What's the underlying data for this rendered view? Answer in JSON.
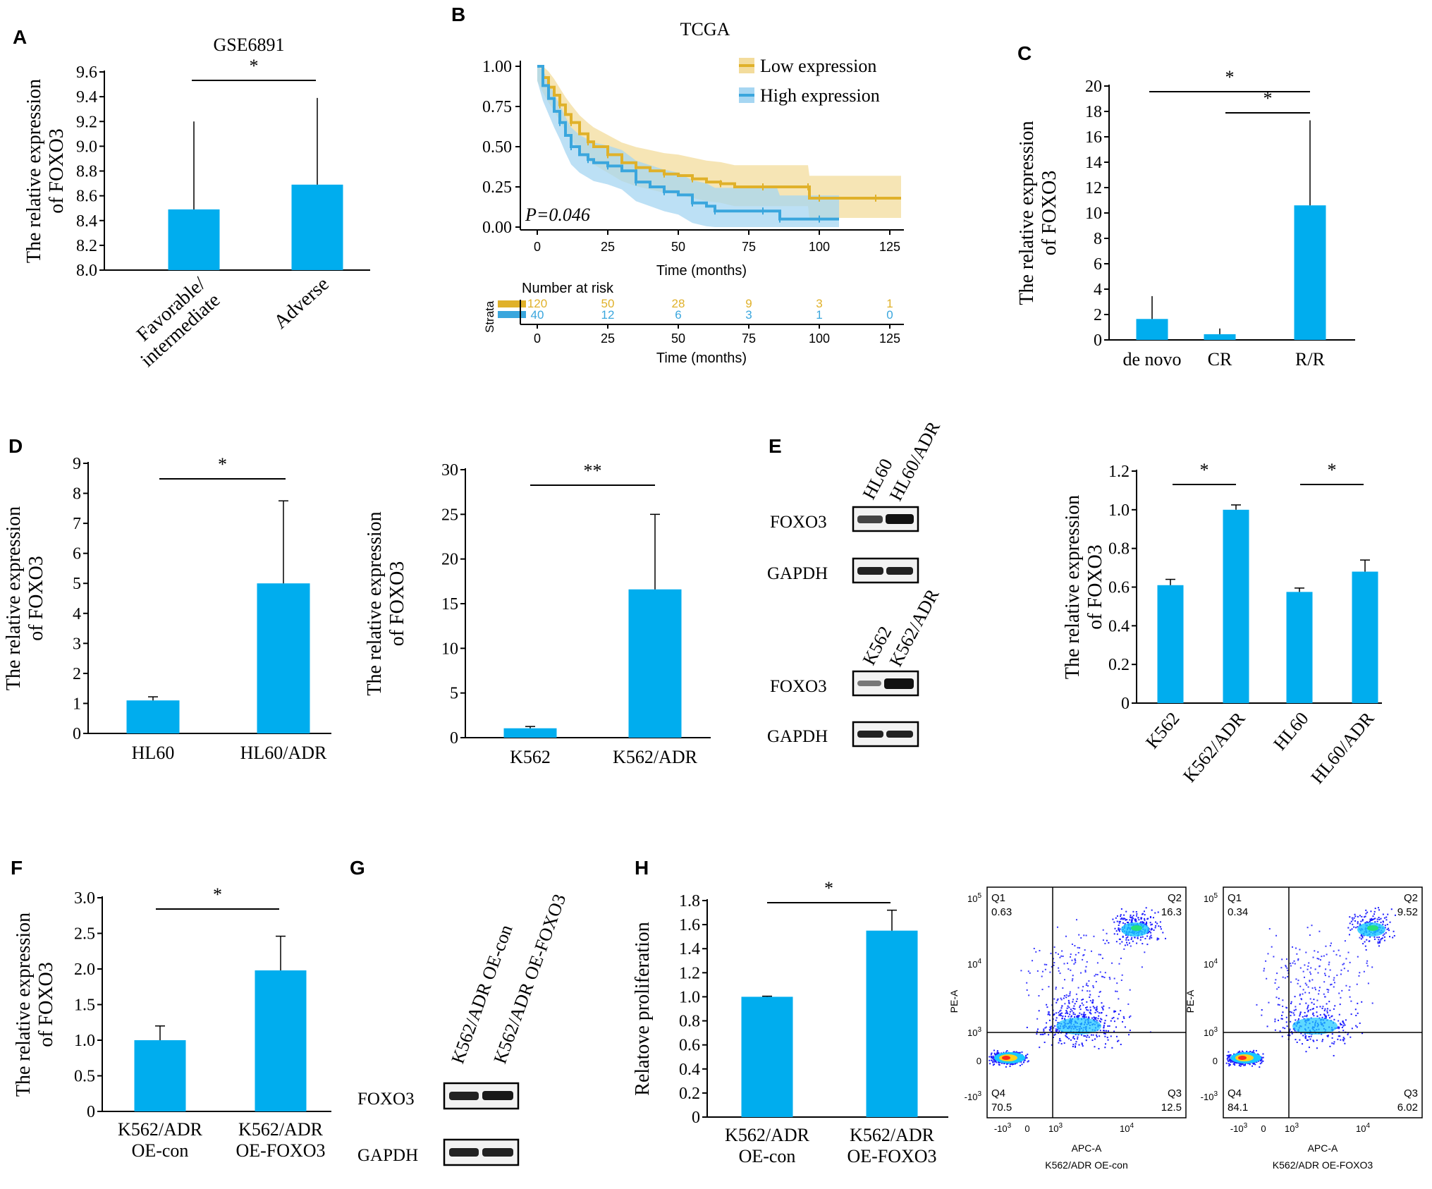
{
  "colors": {
    "bar": "#00adee",
    "low_expression": "#e0b12a",
    "high_expression": "#3aa6dd",
    "low_band": "#f3dc9c",
    "high_band": "#a6d6f2"
  },
  "panels": {
    "A": {
      "letter": "A"
    },
    "B": {
      "letter": "B"
    },
    "C": {
      "letter": "C"
    },
    "D": {
      "letter": "D"
    },
    "E": {
      "letter": "E"
    },
    "F": {
      "letter": "F"
    },
    "G": {
      "letter": "G"
    },
    "H": {
      "letter": "H"
    }
  },
  "blots": {
    "E_top": {
      "lanes": [
        "HL60",
        "HL60/ADR"
      ],
      "rows": [
        "FOXO3",
        "GAPDH"
      ]
    },
    "E_bottom": {
      "lanes": [
        "K562",
        "K562/ADR"
      ],
      "rows": [
        "FOXO3",
        "GAPDH"
      ]
    },
    "G": {
      "lanes": [
        "K562/ADR OE-con",
        "K562/ADR OE-FOXO3"
      ],
      "rows": [
        "FOXO3",
        "GAPDH"
      ]
    }
  },
  "flow": {
    "ylabel": "PE-A",
    "xlabel": "APC-A",
    "plots": [
      {
        "caption": "K562/ADR OE-con",
        "q1": "0.63",
        "q2": "16.3",
        "q3": "12.5",
        "q4": "70.5"
      },
      {
        "caption": "K562/ADR OE-FOXO3",
        "q1": "0.34",
        "q2": "9.52",
        "q3": "6.02",
        "q4": "84.1"
      }
    ],
    "quadrant_labels": {
      "q1": "Q1",
      "q2": "Q2",
      "q3": "Q3",
      "q4": "Q4"
    }
  },
  "chart_data": [
    {
      "id": "A",
      "type": "bar",
      "title": "GSE6891",
      "ylabel": "The relative expression of FOXO3",
      "categories": [
        "Favorable/ intermediate",
        "Adverse"
      ],
      "values": [
        8.49,
        8.69
      ],
      "errors": [
        0.71,
        0.7
      ],
      "ylim": [
        8.0,
        9.6
      ],
      "yticks": [
        "8.0",
        "8.2",
        "8.4",
        "8.6",
        "8.8",
        "9.0",
        "9.2",
        "9.4",
        "9.6"
      ],
      "significance": [
        {
          "from": 0,
          "to": 1,
          "label": "*"
        }
      ]
    },
    {
      "id": "B",
      "type": "line",
      "title": "TCGA",
      "xlabel": "Time (months)",
      "xticks": [
        "0",
        "25",
        "50",
        "75",
        "100",
        "125"
      ],
      "yticks": [
        "0.00",
        "0.25",
        "0.50",
        "0.75",
        "1.00"
      ],
      "xlim": [
        0,
        130
      ],
      "ylim": [
        0,
        1
      ],
      "annotation": "P=0.046",
      "legend_placement": "top-right",
      "series": [
        {
          "name": "Low expression",
          "x": [
            0,
            2,
            4,
            6,
            8,
            10,
            12,
            15,
            18,
            20,
            25,
            30,
            35,
            40,
            45,
            50,
            55,
            60,
            65,
            70,
            80,
            90,
            96,
            96.5,
            100,
            110,
            120,
            129
          ],
          "y": [
            1.0,
            0.93,
            0.87,
            0.82,
            0.76,
            0.7,
            0.65,
            0.58,
            0.53,
            0.5,
            0.45,
            0.4,
            0.37,
            0.35,
            0.33,
            0.32,
            0.3,
            0.28,
            0.27,
            0.25,
            0.25,
            0.25,
            0.25,
            0.18,
            0.18,
            0.18,
            0.18,
            0.18
          ]
        },
        {
          "name": "High expression",
          "x": [
            0,
            2,
            4,
            6,
            8,
            10,
            12,
            15,
            18,
            20,
            25,
            30,
            35,
            40,
            45,
            50,
            55,
            60,
            63,
            70,
            80,
            85,
            86,
            90,
            100,
            107
          ],
          "y": [
            1.0,
            0.88,
            0.8,
            0.72,
            0.65,
            0.57,
            0.5,
            0.45,
            0.42,
            0.4,
            0.38,
            0.35,
            0.28,
            0.25,
            0.22,
            0.2,
            0.15,
            0.13,
            0.1,
            0.1,
            0.1,
            0.1,
            0.05,
            0.05,
            0.05,
            0.05
          ]
        }
      ],
      "risk_table": {
        "title": "Number at risk",
        "strata_label": "Strata",
        "xlabel": "Time (months)",
        "xticks": [
          "0",
          "25",
          "50",
          "75",
          "100",
          "125"
        ],
        "rows": [
          {
            "name": "Low expression",
            "values": [
              "120",
              "50",
              "28",
              "9",
              "3",
              "1"
            ]
          },
          {
            "name": "High expression",
            "values": [
              "40",
              "12",
              "6",
              "3",
              "1",
              "0"
            ]
          }
        ]
      }
    },
    {
      "id": "C",
      "type": "bar",
      "ylabel": "The relative expression of FOXO3",
      "categories": [
        "de novo",
        "CR",
        "R/R"
      ],
      "values": [
        1.65,
        0.45,
        10.6
      ],
      "errors": [
        1.8,
        0.45,
        6.7
      ],
      "ylim": [
        0,
        20
      ],
      "yticks": [
        "0",
        "2",
        "4",
        "6",
        "8",
        "10",
        "12",
        "14",
        "16",
        "18",
        "20"
      ],
      "significance": [
        {
          "from": 0,
          "to": 2,
          "label": "*"
        },
        {
          "from": 1,
          "to": 2,
          "label": "*"
        }
      ]
    },
    {
      "id": "D1",
      "type": "bar",
      "ylabel": "The relative expression of FOXO3",
      "categories": [
        "HL60",
        "HL60/ADR"
      ],
      "values": [
        1.1,
        5.0
      ],
      "errors": [
        0.12,
        2.75
      ],
      "ylim": [
        0,
        9
      ],
      "yticks": [
        "0",
        "1",
        "2",
        "3",
        "4",
        "5",
        "6",
        "7",
        "8",
        "9"
      ],
      "significance": [
        {
          "from": 0,
          "to": 1,
          "label": "*"
        }
      ]
    },
    {
      "id": "D2",
      "type": "bar",
      "ylabel": "The relative expression of FOXO3",
      "categories": [
        "K562",
        "K562/ADR"
      ],
      "values": [
        1.05,
        16.6
      ],
      "errors": [
        0.2,
        8.4
      ],
      "ylim": [
        0,
        30
      ],
      "yticks": [
        "0",
        "5",
        "10",
        "15",
        "20",
        "25",
        "30"
      ],
      "significance": [
        {
          "from": 0,
          "to": 1,
          "label": "**"
        }
      ]
    },
    {
      "id": "E",
      "type": "bar",
      "ylabel": "The relative expression of FOXO3",
      "categories": [
        "K562",
        "K562/ADR",
        "HL60",
        "HL60/ADR"
      ],
      "values": [
        0.61,
        1.0,
        0.575,
        0.68
      ],
      "errors": [
        0.03,
        0.025,
        0.02,
        0.06
      ],
      "ylim": [
        0,
        1.2
      ],
      "yticks": [
        "0",
        "0.2",
        "0.4",
        "0.6",
        "0.8",
        "1.0",
        "1.2"
      ],
      "significance": [
        {
          "from": 0,
          "to": 1,
          "label": "*"
        },
        {
          "from": 2,
          "to": 3,
          "label": "*"
        }
      ]
    },
    {
      "id": "F",
      "type": "bar",
      "ylabel": "The relative expression of FOXO3",
      "categories": [
        "K562/ADR OE-con",
        "K562/ADR OE-FOXO3"
      ],
      "values": [
        1.0,
        1.98
      ],
      "errors": [
        0.2,
        0.48
      ],
      "ylim": [
        0,
        3.0
      ],
      "yticks": [
        "0",
        "0.5",
        "1.0",
        "1.5",
        "2.0",
        "2.5",
        "3.0"
      ],
      "significance": [
        {
          "from": 0,
          "to": 1,
          "label": "*"
        }
      ]
    },
    {
      "id": "H",
      "type": "bar",
      "ylabel": "Relatove proliferation",
      "categories": [
        "K562/ADR OE-con",
        "K562/ADR OE-FOXO3"
      ],
      "values": [
        1.0,
        1.55
      ],
      "errors": [
        0.005,
        0.17
      ],
      "ylim": [
        0,
        1.8
      ],
      "yticks": [
        "0",
        "0.2",
        "0.4",
        "0.6",
        "0.8",
        "1.0",
        "1.2",
        "1.4",
        "1.6",
        "1.8"
      ],
      "significance": [
        {
          "from": 0,
          "to": 1,
          "label": "*"
        }
      ]
    }
  ]
}
